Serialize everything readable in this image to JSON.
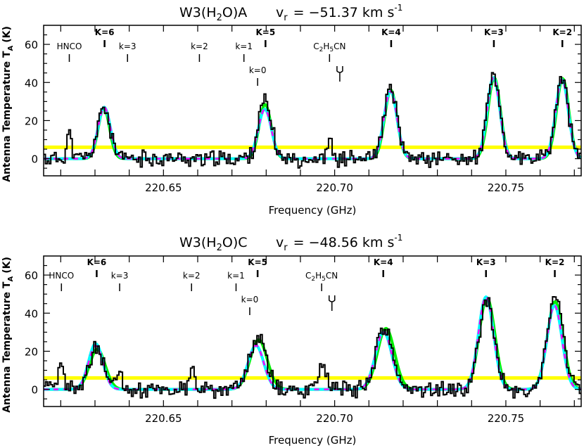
{
  "chart_data": [
    {
      "type": "line",
      "title": "W3(H2O)A  v_r = -51.37 km s^-1",
      "title_main": "W3(H",
      "title_sub": "2",
      "title_rest": "O)A",
      "vr_label": "v",
      "vr_sub": "r",
      "vr_value": "= −51.37 km s",
      "vr_exp": "-1",
      "xlabel": "Frequency (GHz)",
      "ylabel": "Antenna Temperature T",
      "ylabel_sub": "A",
      "ylabel_unit": "(K)",
      "xlim": [
        220.615,
        220.772
      ],
      "ylim": [
        -9,
        70
      ],
      "xticks": [
        220.65,
        220.7,
        220.75
      ],
      "xtick_labels": [
        "220.65",
        "220.70",
        "220.75"
      ],
      "yticks": [
        0,
        20,
        40,
        60
      ],
      "ytick_labels": [
        "0",
        "20",
        "40",
        "60"
      ],
      "annotations": [
        {
          "text": "HNCO",
          "x": 220.6225,
          "row": "low",
          "bold": false,
          "marker": "line"
        },
        {
          "text": "K=6",
          "x": 220.6328,
          "row": "high",
          "bold": true,
          "marker": "line"
        },
        {
          "text": "k=3",
          "x": 220.6395,
          "row": "low",
          "bold": false,
          "marker": "line"
        },
        {
          "text": "k=2",
          "x": 220.6605,
          "row": "low",
          "bold": false,
          "marker": "line"
        },
        {
          "text": "k=1",
          "x": 220.6735,
          "row": "low",
          "bold": false,
          "marker": "line"
        },
        {
          "text": "K=5",
          "x": 220.6798,
          "row": "high",
          "bold": true,
          "marker": "line"
        },
        {
          "text": "k=0",
          "x": 220.6775,
          "row": "mid",
          "bold": false,
          "marker": "line"
        },
        {
          "text": "C2H5CN",
          "x": 220.6985,
          "row": "low",
          "bold": false,
          "marker": "line"
        },
        {
          "text": "",
          "x": 220.7015,
          "row": "mid",
          "bold": false,
          "marker": "fork"
        },
        {
          "text": "K=4",
          "x": 220.7165,
          "row": "high",
          "bold": true,
          "marker": "line"
        },
        {
          "text": "K=3",
          "x": 220.7465,
          "row": "high",
          "bold": true,
          "marker": "line"
        },
        {
          "text": "K=2",
          "x": 220.7665,
          "row": "high",
          "bold": true,
          "marker": "line"
        }
      ],
      "series": [
        {
          "name": "baseline",
          "color": "#ffff00",
          "points": [
            [
              220.615,
              6.0
            ],
            [
              220.772,
              6.0
            ]
          ]
        },
        {
          "name": "model-green",
          "color": "#00ee00",
          "gaussians": [
            [
              220.6326,
              26.5,
              0.00165
            ],
            [
              220.6797,
              28.5,
              0.00175
            ],
            [
              220.7164,
              36.0,
              0.0018
            ],
            [
              220.7466,
              42.5,
              0.0018
            ],
            [
              220.7666,
              42.0,
              0.0018
            ]
          ]
        },
        {
          "name": "model-cyan",
          "color": "#00ffff",
          "gaussians": [
            [
              220.6327,
              27.0,
              0.0018
            ],
            [
              220.6796,
              26.0,
              0.0019
            ],
            [
              220.7163,
              35.5,
              0.0019
            ],
            [
              220.7464,
              42.5,
              0.00185
            ],
            [
              220.7664,
              41.5,
              0.00185
            ]
          ]
        },
        {
          "name": "model-magenta",
          "color": "#ff00ff",
          "gaussians": [
            [
              220.6327,
              27.0,
              0.0018
            ],
            [
              220.6796,
              26.0,
              0.0019
            ],
            [
              220.7163,
              35.5,
              0.0019
            ],
            [
              220.7464,
              42.5,
              0.00185
            ],
            [
              220.7664,
              41.5,
              0.00185
            ]
          ]
        },
        {
          "name": "observed",
          "color": "#000000",
          "seed": 11,
          "extra_peaks": [
            [
              220.6225,
              14.0,
              0.0007
            ],
            [
              220.6985,
              11.0,
              0.0006
            ]
          ],
          "peaks": [
            [
              220.6326,
              27.0,
              0.0018
            ],
            [
              220.6796,
              30.0,
              0.0019
            ],
            [
              220.7163,
              36.0,
              0.0019
            ],
            [
              220.7464,
              43.0,
              0.00185
            ],
            [
              220.7664,
              42.0,
              0.00185
            ]
          ]
        }
      ]
    },
    {
      "type": "line",
      "title": "W3(H2O)C  v_r = -48.56 km s^-1",
      "title_main": "W3(H",
      "title_sub": "2",
      "title_rest": "O)C",
      "vr_label": "v",
      "vr_sub": "r",
      "vr_value": "= −48.56 km s",
      "vr_exp": "-1",
      "xlabel": "Frequency (GHz)",
      "ylabel": "Antenna Temperature T",
      "ylabel_sub": "A",
      "ylabel_unit": "(K)",
      "xlim": [
        220.615,
        220.772
      ],
      "ylim": [
        -9,
        70
      ],
      "xticks": [
        220.65,
        220.7,
        220.75
      ],
      "xtick_labels": [
        "220.65",
        "220.70",
        "220.75"
      ],
      "yticks": [
        0,
        20,
        40,
        60
      ],
      "ytick_labels": [
        "0",
        "20",
        "40",
        "60"
      ],
      "annotations": [
        {
          "text": "HNCO",
          "x": 220.6202,
          "row": "low",
          "bold": false,
          "marker": "line"
        },
        {
          "text": "K=6",
          "x": 220.6305,
          "row": "high",
          "bold": true,
          "marker": "line"
        },
        {
          "text": "k=3",
          "x": 220.6372,
          "row": "low",
          "bold": false,
          "marker": "line"
        },
        {
          "text": "k=2",
          "x": 220.6582,
          "row": "low",
          "bold": false,
          "marker": "line"
        },
        {
          "text": "k=1",
          "x": 220.6712,
          "row": "low",
          "bold": false,
          "marker": "line"
        },
        {
          "text": "K=5",
          "x": 220.6775,
          "row": "high",
          "bold": true,
          "marker": "line"
        },
        {
          "text": "k=0",
          "x": 220.6752,
          "row": "mid",
          "bold": false,
          "marker": "line"
        },
        {
          "text": "C2H5CN",
          "x": 220.6962,
          "row": "low",
          "bold": false,
          "marker": "line"
        },
        {
          "text": "",
          "x": 220.6992,
          "row": "mid",
          "bold": false,
          "marker": "fork"
        },
        {
          "text": "K=4",
          "x": 220.7142,
          "row": "high",
          "bold": true,
          "marker": "line"
        },
        {
          "text": "K=3",
          "x": 220.7442,
          "row": "high",
          "bold": true,
          "marker": "line"
        },
        {
          "text": "K=2",
          "x": 220.7643,
          "row": "high",
          "bold": true,
          "marker": "line"
        }
      ],
      "series": [
        {
          "name": "baseline",
          "color": "#ffff00",
          "points": [
            [
              220.615,
              6.0
            ],
            [
              220.772,
              6.0
            ]
          ]
        },
        {
          "name": "model-green",
          "color": "#00ee00",
          "gaussians": [
            [
              220.6307,
              21.0,
              0.0023
            ],
            [
              220.6778,
              26.0,
              0.0025
            ],
            [
              220.715,
              32.0,
              0.0025
            ],
            [
              220.7445,
              48.0,
              0.0023
            ],
            [
              220.7644,
              46.0,
              0.0023
            ]
          ]
        },
        {
          "name": "model-cyan",
          "color": "#00ffff",
          "gaussians": [
            [
              220.6302,
              24.0,
              0.0021
            ],
            [
              220.677,
              23.0,
              0.0023
            ],
            [
              220.7143,
              30.0,
              0.0024
            ],
            [
              220.7442,
              48.5,
              0.0022
            ],
            [
              220.7642,
              44.0,
              0.0022
            ]
          ]
        },
        {
          "name": "model-magenta",
          "color": "#ff00ff",
          "gaussians": [
            [
              220.6302,
              23.0,
              0.0021
            ],
            [
              220.677,
              23.0,
              0.0023
            ],
            [
              220.7143,
              30.0,
              0.0024
            ],
            [
              220.7442,
              48.5,
              0.0022
            ],
            [
              220.7642,
              44.0,
              0.0022
            ]
          ]
        },
        {
          "name": "observed",
          "color": "#000000",
          "seed": 37,
          "extra_peaks": [
            [
              220.6202,
              11.0,
              0.0008
            ],
            [
              220.6372,
              10.0,
              0.0008
            ],
            [
              220.6585,
              11.0,
              0.0008
            ],
            [
              220.6962,
              14.0,
              0.0012
            ]
          ],
          "peaks": [
            [
              220.6305,
              21.0,
              0.0022
            ],
            [
              220.6775,
              27.0,
              0.0024
            ],
            [
              220.7145,
              32.0,
              0.0024
            ],
            [
              220.7444,
              47.0,
              0.0022
            ],
            [
              220.7645,
              50.0,
              0.0022
            ]
          ]
        }
      ]
    }
  ]
}
